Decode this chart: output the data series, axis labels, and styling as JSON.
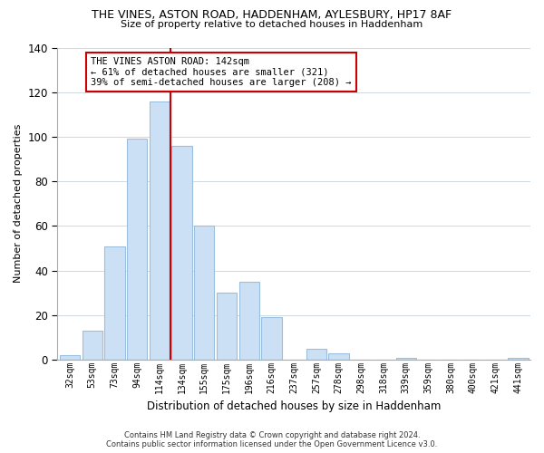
{
  "title": "THE VINES, ASTON ROAD, HADDENHAM, AYLESBURY, HP17 8AF",
  "subtitle": "Size of property relative to detached houses in Haddenham",
  "xlabel": "Distribution of detached houses by size in Haddenham",
  "ylabel": "Number of detached properties",
  "bar_labels": [
    "32sqm",
    "53sqm",
    "73sqm",
    "94sqm",
    "114sqm",
    "134sqm",
    "155sqm",
    "175sqm",
    "196sqm",
    "216sqm",
    "237sqm",
    "257sqm",
    "278sqm",
    "298sqm",
    "318sqm",
    "339sqm",
    "359sqm",
    "380sqm",
    "400sqm",
    "421sqm",
    "441sqm"
  ],
  "bar_heights": [
    2,
    13,
    51,
    99,
    116,
    96,
    60,
    30,
    35,
    19,
    0,
    5,
    3,
    0,
    0,
    1,
    0,
    0,
    0,
    0,
    1
  ],
  "bar_color": "#cce0f5",
  "bar_edge_color": "#9bbedd",
  "vline_color": "#cc0000",
  "annotation_text": "THE VINES ASTON ROAD: 142sqm\n← 61% of detached houses are smaller (321)\n39% of semi-detached houses are larger (208) →",
  "annotation_box_color": "#ffffff",
  "annotation_box_edge": "#cc0000",
  "ylim": [
    0,
    140
  ],
  "yticks": [
    0,
    20,
    40,
    60,
    80,
    100,
    120,
    140
  ],
  "footer_line1": "Contains HM Land Registry data © Crown copyright and database right 2024.",
  "footer_line2": "Contains public sector information licensed under the Open Government Licence v3.0.",
  "bg_color": "#ffffff",
  "grid_color": "#d0d8e0"
}
